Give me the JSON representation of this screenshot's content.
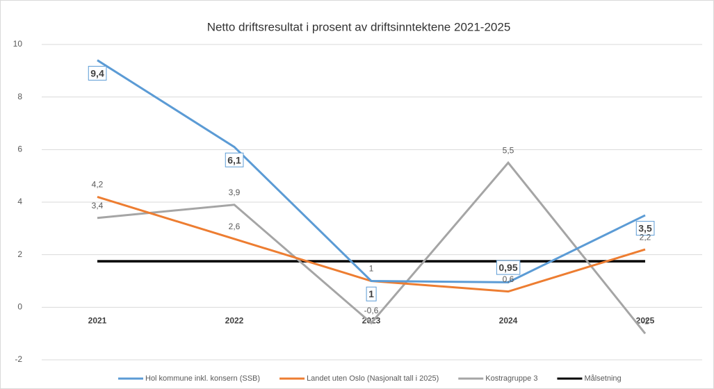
{
  "chart_data": {
    "type": "line",
    "title": "Netto driftsresultat i prosent av driftsinntektene 2021-2025",
    "categories": [
      "2021",
      "2022",
      "2023",
      "2024",
      "2025"
    ],
    "ylim": [
      -2,
      10
    ],
    "yticks": [
      -2,
      0,
      2,
      4,
      6,
      8,
      10
    ],
    "grid": true,
    "legend": "bottom",
    "series": [
      {
        "name": "Hol kommune inkl. konsern (SSB)",
        "color": "#5b9bd5",
        "values": [
          9.4,
          6.1,
          1,
          0.95,
          3.5
        ],
        "value_labels": [
          "9,4",
          "6,1",
          "1",
          "0,95",
          "3,5"
        ]
      },
      {
        "name": "Landet uten Oslo (Nasjonalt tall i 2025)",
        "color": "#ed7d31",
        "values": [
          4.2,
          2.6,
          1,
          0.6,
          2.2
        ],
        "value_labels": [
          "4,2",
          "2,6",
          "1",
          "0,6",
          "2,2"
        ]
      },
      {
        "name": "Kostragruppe 3",
        "color": "#a5a5a5",
        "values": [
          3.4,
          3.9,
          -0.6,
          5.5,
          -1
        ],
        "value_labels": [
          "3,4",
          "3,9",
          "-0,6",
          "5,5",
          "-1"
        ]
      },
      {
        "name": "Målsetning",
        "color": "#000000",
        "values": [
          1.75,
          1.75,
          1.75,
          1.75,
          1.75
        ]
      }
    ]
  }
}
